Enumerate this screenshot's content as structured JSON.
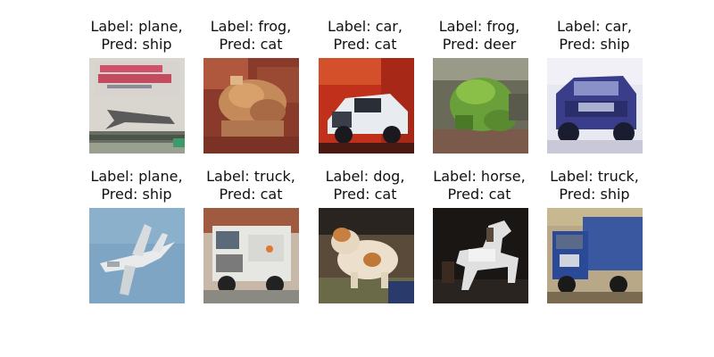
{
  "figure": {
    "samples": [
      {
        "label_line": "Label: plane,",
        "pred_line": "Pred: ship",
        "subject": "plane-poster-icon"
      },
      {
        "label_line": "Label: frog,",
        "pred_line": "Pred: cat",
        "subject": "frog-icon"
      },
      {
        "label_line": "Label: car,",
        "pred_line": "Pred: cat",
        "subject": "car-icon"
      },
      {
        "label_line": "Label: frog,",
        "pred_line": "Pred: deer",
        "subject": "green-frog-icon"
      },
      {
        "label_line": "Label: car,",
        "pred_line": "Pred: ship",
        "subject": "blue-suv-icon"
      },
      {
        "label_line": "Label: plane,",
        "pred_line": "Pred: ship",
        "subject": "jet-icon"
      },
      {
        "label_line": "Label: truck,",
        "pred_line": "Pred: cat",
        "subject": "white-truck-icon"
      },
      {
        "label_line": "Label: dog,",
        "pred_line": "Pred: cat",
        "subject": "dog-icon"
      },
      {
        "label_line": "Label: horse,",
        "pred_line": "Pred: cat",
        "subject": "white-horse-icon"
      },
      {
        "label_line": "Label: truck,",
        "pred_line": "Pred: ship",
        "subject": "blue-truck-icon"
      }
    ]
  }
}
